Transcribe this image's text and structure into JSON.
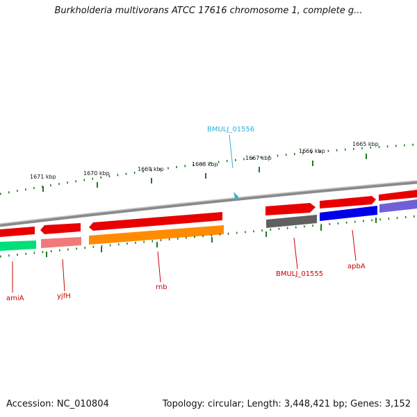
{
  "title": "Burkholderia multivorans ATCC 17616 chromosome 1, complete g...",
  "footer": {
    "accession": "Accession: NC_010804",
    "topology": "Topology: circular; Length: 3,448,421 bp; Genes: 3,152"
  },
  "ruler_labels": [
    "1671 kbp",
    "1670 kbp",
    "1669 kbp",
    "1668 kbp",
    "1667 kbp",
    "1666 kbp",
    "1665 kbp"
  ],
  "genes": [
    {
      "name": "amiA",
      "color_top": "#e80000",
      "color_bottom": "#00e07a"
    },
    {
      "name": "yjfH",
      "color_top": "#e80000",
      "color_bottom": "#f07a7a"
    },
    {
      "name": "rnb",
      "color_top": "#e80000",
      "color_bottom": "#ff8c00"
    },
    {
      "name": "BMULJ_01555",
      "color_top": "#e80000",
      "color_bottom": "#606060"
    },
    {
      "name": "apbA",
      "color_top": "#e80000",
      "color_bottom": "#0000e8"
    }
  ],
  "selected_gene": {
    "name": "BMULJ_01556",
    "color": "#2ab0d8"
  }
}
